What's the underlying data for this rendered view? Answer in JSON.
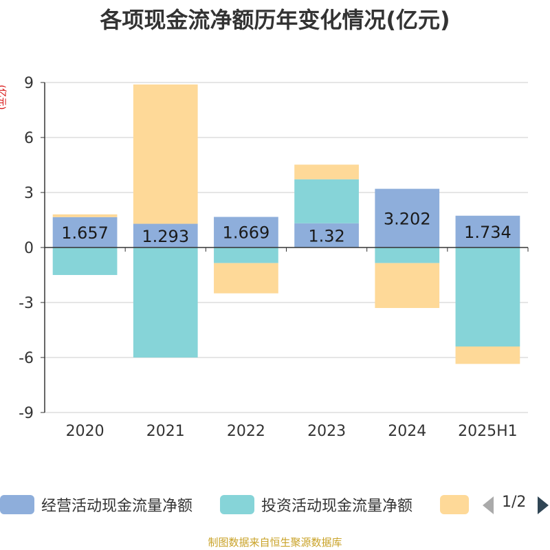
{
  "title": "各项现金流净额历年变化情况(亿元)",
  "unit_label": "(亿元)",
  "source": "制图数据来自恒生聚源数据库",
  "pager": {
    "text": "1/2"
  },
  "chart_data": {
    "type": "bar",
    "stacked": true,
    "categories": [
      "2020",
      "2021",
      "2022",
      "2023",
      "2024",
      "2025H1"
    ],
    "ylim": [
      -9,
      9
    ],
    "yticks": [
      9,
      6,
      3,
      0,
      -3,
      -6,
      -9
    ],
    "grid": true,
    "legend_position": "bottom",
    "series": [
      {
        "name": "经营活动现金流量净额",
        "color": "#8eaedb",
        "values": [
          1.657,
          1.293,
          1.669,
          1.32,
          3.202,
          1.734
        ],
        "data_labels": [
          "1.657",
          "1.293",
          "1.669",
          "1.32",
          "3.202",
          "1.734"
        ]
      },
      {
        "name": "投资活动现金流量净额",
        "color": "#86d4d8",
        "values": [
          -1.5,
          -6.0,
          -0.85,
          2.4,
          -0.85,
          -5.4
        ]
      },
      {
        "name": "",
        "color": "#fed998",
        "values": [
          0.15,
          7.6,
          -1.65,
          0.8,
          -2.45,
          -0.95
        ]
      }
    ]
  }
}
